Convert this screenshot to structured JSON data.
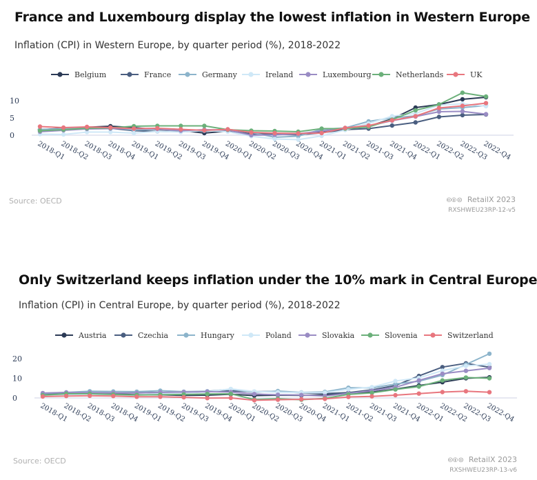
{
  "charts": [
    {
      "title": "France and Luxembourg display the lowest inflation in Western Europe",
      "subtitle": "Inflation (CPI) in Western Europe, by quarter period (%), 2018-2022",
      "source": "Source: OECD",
      "brand": "RetailX 2023",
      "code": "RXSHWEU23RP-12-v5",
      "license_icons": "🅭🅯⊜"
    },
    {
      "title": "Only Switzerland keeps inflation under the 10% mark in Central Europe",
      "subtitle": "Inflation (CPI) in Central Europe, by quarter period (%), 2018-2022",
      "source": "Source: OECD",
      "brand": "RetailX 2023",
      "code": "RXSHWEU23RP-13-v6",
      "license_icons": "🅭🅯⊜"
    }
  ],
  "chart_data": [
    {
      "type": "line",
      "title": "France and Luxembourg display the lowest inflation in Western Europe",
      "categories": [
        "2018-Q1",
        "2018-Q2",
        "2018-Q3",
        "2018-Q4",
        "2019-Q1",
        "2019-Q2",
        "2019-Q3",
        "2019-Q4",
        "2020-Q1",
        "2020-Q2",
        "2020-Q3",
        "2020-Q4",
        "2021-Q1",
        "2021-Q2",
        "2021-Q3",
        "2021-Q4",
        "2022-Q1",
        "2022-Q2",
        "2022-Q3",
        "2022-Q4"
      ],
      "yticks": [
        0,
        5,
        10
      ],
      "ylim": [
        -1.5,
        12.5
      ],
      "xlabel": "",
      "ylabel": "",
      "series": [
        {
          "name": "Belgium",
          "color": "#2b3a55",
          "values": [
            1.6,
            2.0,
            2.3,
            2.6,
            2.2,
            1.6,
            1.4,
            0.6,
            1.2,
            0.4,
            0.4,
            0.3,
            0.8,
            2.0,
            2.6,
            4.7,
            8.0,
            8.9,
            10.4,
            11.0
          ]
        },
        {
          "name": "France",
          "color": "#4a5e80",
          "values": [
            1.5,
            1.8,
            2.2,
            2.0,
            1.3,
            1.1,
            1.0,
            1.2,
            1.5,
            0.3,
            0.3,
            0.1,
            0.7,
            1.6,
            1.9,
            2.8,
            3.7,
            5.3,
            5.8,
            6.0
          ]
        },
        {
          "name": "Germany",
          "color": "#8cb4cb",
          "values": [
            1.6,
            1.9,
            2.0,
            2.2,
            1.5,
            1.7,
            1.4,
            1.3,
            1.7,
            0.8,
            -0.6,
            -0.3,
            1.7,
            2.1,
            4.0,
            5.0,
            5.6,
            7.6,
            8.0,
            8.6
          ]
        },
        {
          "name": "Ireland",
          "color": "#cfe8f7",
          "values": [
            0.3,
            0.2,
            0.9,
            0.9,
            0.6,
            1.1,
            0.9,
            1.4,
            1.0,
            -0.3,
            -1.1,
            -1.3,
            -0.2,
            1.5,
            3.4,
            5.5,
            6.3,
            8.7,
            9.1,
            8.4
          ]
        },
        {
          "name": "Luxembourg",
          "color": "#9a8cc4",
          "values": [
            1.0,
            1.4,
            1.8,
            1.9,
            1.9,
            1.8,
            1.3,
            1.6,
            1.5,
            0.0,
            0.1,
            0.4,
            1.2,
            2.0,
            2.7,
            4.2,
            5.4,
            6.8,
            6.9,
            6.1
          ]
        },
        {
          "name": "Netherlands",
          "color": "#6bb07a",
          "values": [
            1.3,
            1.6,
            2.0,
            2.1,
            2.6,
            2.7,
            2.7,
            2.7,
            1.6,
            1.3,
            1.2,
            1.0,
            1.9,
            1.9,
            2.4,
            4.5,
            7.2,
            8.9,
            12.3,
            11.2
          ]
        },
        {
          "name": "UK",
          "color": "#e8767e",
          "values": [
            2.5,
            2.2,
            2.4,
            2.2,
            1.9,
            2.0,
            1.7,
            1.4,
            1.7,
            0.8,
            0.6,
            0.5,
            0.6,
            2.1,
            2.8,
            4.3,
            5.5,
            7.9,
            8.5,
            9.3
          ]
        }
      ]
    },
    {
      "type": "line",
      "title": "Only Switzerland keeps inflation under the 10% mark in Central Europe",
      "categories": [
        "2018-Q1",
        "2018-Q2",
        "2018-Q3",
        "2018-Q4",
        "2019-Q1",
        "2019-Q2",
        "2019-Q3",
        "2019-Q4",
        "2020-Q1",
        "2020-Q2",
        "2020-Q3",
        "2020-Q4",
        "2021-Q1",
        "2021-Q2",
        "2021-Q3",
        "2021-Q4",
        "2022-Q1",
        "2022-Q2",
        "2022-Q3",
        "2022-Q4"
      ],
      "yticks": [
        0,
        10,
        20
      ],
      "ylim": [
        -2.5,
        23.5
      ],
      "xlabel": "",
      "ylabel": "",
      "series": [
        {
          "name": "Austria",
          "color": "#2b3a55",
          "values": [
            2.0,
            2.1,
            2.1,
            2.0,
            1.6,
            1.6,
            1.3,
            1.4,
            1.9,
            1.2,
            1.4,
            1.3,
            1.5,
            2.5,
            3.0,
            4.5,
            6.3,
            8.0,
            10.0,
            10.5
          ]
        },
        {
          "name": "Czechia",
          "color": "#4a5e80",
          "values": [
            1.9,
            2.2,
            2.4,
            2.3,
            2.7,
            2.8,
            2.7,
            3.1,
            3.6,
            3.2,
            3.3,
            2.6,
            2.2,
            2.7,
            4.1,
            6.3,
            11.2,
            15.7,
            17.6,
            15.6
          ]
        },
        {
          "name": "Hungary",
          "color": "#8cb4cb",
          "values": [
            2.3,
            2.8,
            3.4,
            3.3,
            3.2,
            3.7,
            3.2,
            3.4,
            4.4,
            2.9,
            3.5,
            2.8,
            3.1,
            5.2,
            5.1,
            7.1,
            8.5,
            11.6,
            17.0,
            22.5
          ]
        },
        {
          "name": "Poland",
          "color": "#cfe8f7",
          "values": [
            1.5,
            1.7,
            2.0,
            1.3,
            1.4,
            2.4,
            2.6,
            3.1,
            4.6,
            3.3,
            2.9,
            2.7,
            2.7,
            4.4,
            5.5,
            8.6,
            10.2,
            13.9,
            16.3,
            17.2
          ]
        },
        {
          "name": "Slovakia",
          "color": "#9a8cc4",
          "values": [
            2.5,
            2.8,
            2.7,
            2.6,
            2.5,
            2.8,
            3.0,
            3.2,
            3.0,
            2.0,
            1.6,
            1.5,
            1.0,
            2.3,
            3.7,
            5.4,
            8.9,
            12.3,
            13.8,
            15.2
          ]
        },
        {
          "name": "Slovenia",
          "color": "#6bb07a",
          "values": [
            1.4,
            2.1,
            2.1,
            1.8,
            1.5,
            1.7,
            1.8,
            2.0,
            2.1,
            -0.8,
            -0.4,
            -0.9,
            -0.2,
            1.8,
            2.6,
            4.3,
            5.8,
            8.9,
            10.4,
            10.0
          ]
        },
        {
          "name": "Switzerland",
          "color": "#e8767e",
          "values": [
            0.7,
            1.0,
            1.1,
            1.0,
            0.6,
            0.6,
            0.3,
            -0.1,
            0.0,
            -1.2,
            -0.9,
            -0.7,
            -0.5,
            0.5,
            0.8,
            1.4,
            2.2,
            3.0,
            3.4,
            2.9
          ]
        }
      ]
    }
  ]
}
